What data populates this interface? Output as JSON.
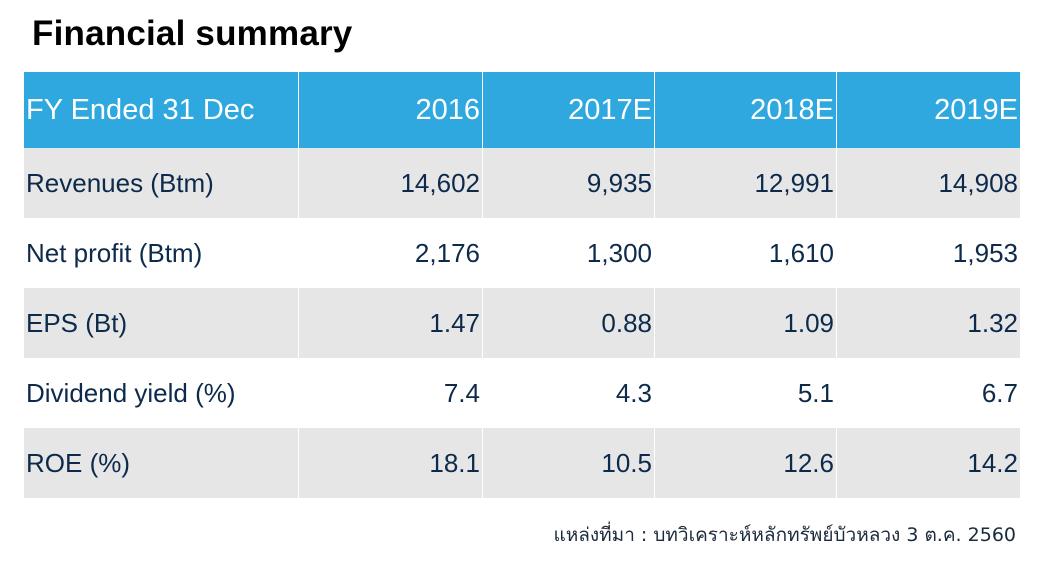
{
  "title": "Financial summary",
  "table": {
    "header": {
      "label": "FY Ended 31 Dec",
      "years": [
        "2016",
        "2017E",
        "2018E",
        "2019E"
      ]
    },
    "rows": [
      {
        "label": "Revenues (Btm)",
        "values": [
          "14,602",
          "9,935",
          "12,991",
          "14,908"
        ]
      },
      {
        "label": "Net profit (Btm)",
        "values": [
          "2,176",
          "1,300",
          "1,610",
          "1,953"
        ]
      },
      {
        "label": "EPS (Bt)",
        "values": [
          "1.47",
          "0.88",
          "1.09",
          "1.32"
        ]
      },
      {
        "label": "Dividend yield (%)",
        "values": [
          "7.4",
          "4.3",
          "5.1",
          "6.7"
        ]
      },
      {
        "label": "ROE (%)",
        "values": [
          "18.1",
          "10.5",
          "12.6",
          "14.2"
        ]
      }
    ]
  },
  "source": "แหล่งที่มา : บทวิเคราะห์หลักทรัพย์บัวหลวง 3 ต.ค. 2560",
  "colors": {
    "header_bg": "#2fa8e0",
    "shaded_row": "#e6e6e7",
    "text": "#0d2a4a"
  }
}
